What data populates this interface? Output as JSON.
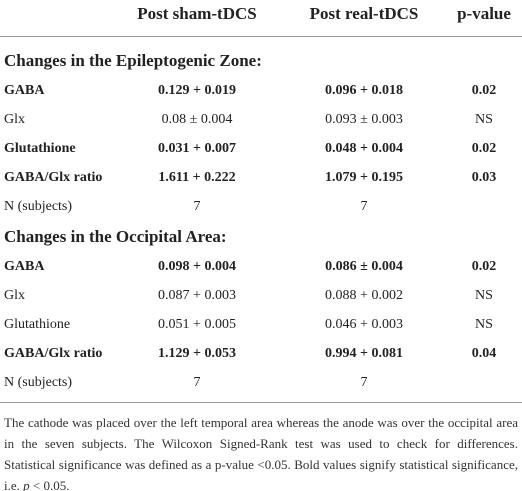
{
  "header": [
    "Post sham-tDCS",
    "Post real-tDCS",
    "p-value"
  ],
  "sections": [
    {
      "title": "Changes in the Epileptogenic Zone:",
      "rows": [
        {
          "cells": [
            "GABA",
            "0.129 + 0.019",
            "0.096 + 0.018",
            "0.02"
          ],
          "bold": true
        },
        {
          "cells": [
            "Glx",
            "0.08 ± 0.004",
            "0.093 ± 0.003",
            "NS"
          ],
          "bold": false
        },
        {
          "cells": [
            "Glutathione",
            "0.031 + 0.007",
            "0.048 + 0.004",
            "0.02"
          ],
          "bold": true
        },
        {
          "cells": [
            "GABA/Glx ratio",
            "1.611 + 0.222",
            "1.079 + 0.195",
            "0.03"
          ],
          "bold": true
        },
        {
          "cells": [
            "N (subjects)",
            "7",
            "7"
          ],
          "bold": false
        }
      ]
    },
    {
      "title": "Changes in the Occipital Area:",
      "rows": [
        {
          "cells": [
            "GABA",
            "0.098 + 0.004",
            "0.086 ± 0.004",
            "0.02"
          ],
          "bold": true
        },
        {
          "cells": [
            "Glx",
            "0.087 + 0.003",
            "0.088 + 0.002",
            "NS"
          ],
          "bold": false
        },
        {
          "cells": [
            "Glutathione",
            "0.051 + 0.005",
            "0.046 + 0.003",
            "NS"
          ],
          "bold": false
        },
        {
          "cells": [
            "GABA/Glx ratio",
            "1.129 + 0.053",
            "0.994 + 0.081",
            "0.04"
          ],
          "bold": true
        },
        {
          "cells": [
            "N (subjects)",
            "7",
            "7"
          ],
          "bold": false
        }
      ]
    }
  ],
  "footnote": [
    "The cathode was placed over the left temporal area whereas the anode was over the occipital area in the seven subjects. The Wilcoxon Signed-Rank test was used to check for differences. Statistical significance was defined as a p-value <0.05. Bold values signify statistical significance, i.e. ",
    "p",
    " < 0.05."
  ]
}
